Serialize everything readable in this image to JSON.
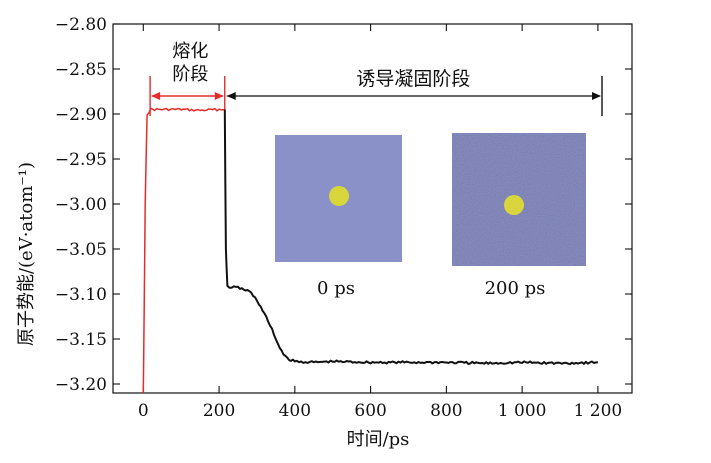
{
  "chart_data": {
    "type": "line",
    "title": "",
    "xlabel": "时间/ps",
    "ylabel": "原子势能/(eV·atom⁻¹)",
    "xlim": [
      -80,
      1290
    ],
    "ylim": [
      -3.21,
      -2.8
    ],
    "xticks": [
      0,
      200,
      400,
      600,
      800,
      1000,
      1200
    ],
    "xtick_labels": [
      "0",
      "200",
      "400",
      "600",
      "800",
      "1 000",
      "1 200"
    ],
    "yticks": [
      -2.8,
      -2.85,
      -2.9,
      -2.95,
      -3.0,
      -3.05,
      -3.1,
      -3.15,
      -3.2
    ],
    "ytick_labels": [
      "−2.80",
      "−2.85",
      "−2.90",
      "−2.95",
      "−3.00",
      "−3.05",
      "−3.10",
      "−3.15",
      "−3.20"
    ],
    "grid": false,
    "series": [
      {
        "color": "#e52b2b",
        "x": [
          0,
          5,
          10,
          20,
          50,
          100,
          150,
          200,
          215
        ],
        "y": [
          -3.21,
          -3.0,
          -2.9,
          -2.895,
          -2.895,
          -2.895,
          -2.896,
          -2.895,
          -2.895
        ]
      },
      {
        "color": "#111111",
        "x": [
          215,
          218,
          222,
          250,
          280,
          300,
          320,
          340,
          360,
          380,
          400,
          450,
          500,
          600,
          700,
          800,
          900,
          1000,
          1100,
          1200
        ],
        "y": [
          -2.895,
          -3.05,
          -3.092,
          -3.093,
          -3.097,
          -3.107,
          -3.122,
          -3.14,
          -3.16,
          -3.172,
          -3.175,
          -3.176,
          -3.175,
          -3.176,
          -3.176,
          -3.176,
          -3.177,
          -3.176,
          -3.177,
          -3.176
        ]
      }
    ],
    "annotations": [
      {
        "id": "melt",
        "lines": [
          "熔化",
          "阶段"
        ],
        "x_from": 10,
        "x_to": 215,
        "y": -2.88
      },
      {
        "id": "induced",
        "text": "诱导凝固阶段",
        "x_from": 215,
        "x_to": 1220,
        "y": -2.88
      }
    ],
    "snapshots": [
      {
        "label": "0 ps",
        "bg_color": "#8a90c8",
        "dot_color": "#d8d63a"
      },
      {
        "label": "200 ps",
        "bg_color": "#8a8fc4",
        "dot_color": "#d8d63a"
      }
    ]
  }
}
